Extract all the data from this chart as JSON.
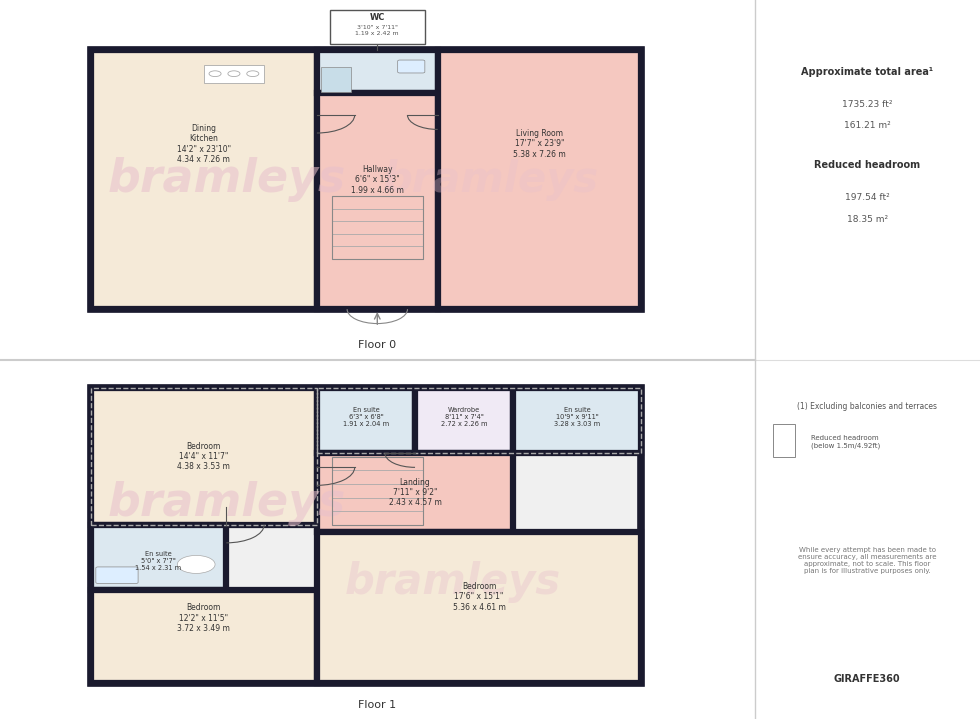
{
  "bg_color": "#ffffff",
  "wall_color": "#1a1a2e",
  "wall_lw": 4.5,
  "room_colors": {
    "dining_kitchen": "#f5ead8",
    "living_room": "#f5c8c0",
    "hallway_f0": "#f5c8c0",
    "wc": "#dce8f0",
    "bedroom1": "#f5ead8",
    "bedroom2": "#f5ead8",
    "bedroom3": "#f5ead8",
    "ensuite1": "#dce8f0",
    "ensuite2": "#dce8f0",
    "ensuite3": "#dce8f0",
    "wardrobe": "#f0eaf5",
    "landing": "#f5c8c0"
  },
  "watermark_color": "#e8c0cc",
  "watermark_text": "bramleys",
  "floor0_label": "Floor 0",
  "floor1_label": "Floor 1",
  "info_title": "Approximate total area¹",
  "info_area_ft": "1735.23 ft²",
  "info_area_m": "161.21 m²",
  "info_reduced_title": "Reduced headroom",
  "info_reduced_ft": "197.54 ft²",
  "info_reduced_m": "18.35 m²",
  "footnote1": "(1) Excluding balconies and terraces",
  "footnote2": "Reduced headroom\n(below 1.5m/4.92ft)",
  "footnote3": "While every attempt has been made to\nensure accuracy, all measurements are\napproximate, not to scale. This floor\nplan is for illustrative purposes only.",
  "giraffe": "GIRAFFE360"
}
